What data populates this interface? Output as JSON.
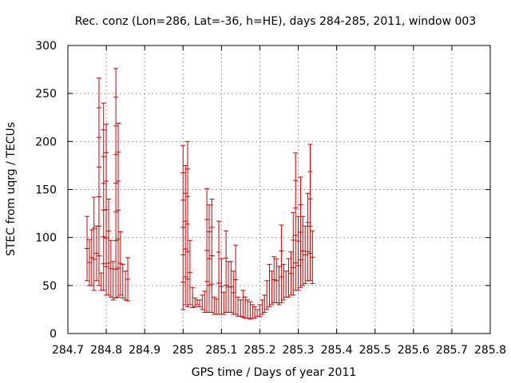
{
  "chart_data": {
    "type": "scatter",
    "title": "Rec. conz (Lon=286, Lat=-36, h=HE), days 284-285, 2011, window 003",
    "xlabel": "GPS time / Days of year 2011",
    "ylabel": "STEC from uqrg / TECUs",
    "xlim": [
      284.7,
      285.8
    ],
    "ylim": [
      0,
      300
    ],
    "x_ticks": [
      284.7,
      284.8,
      284.9,
      285,
      285.1,
      285.2,
      285.3,
      285.4,
      285.5,
      285.6,
      285.7,
      285.8
    ],
    "x_tick_labels": [
      "284.7",
      "284.8",
      "284.9",
      "285",
      "285.1",
      "285.2",
      "285.3",
      "285.4",
      "285.5",
      "285.6",
      "285.7",
      "285.8"
    ],
    "y_ticks": [
      0,
      50,
      100,
      150,
      200,
      250,
      300
    ],
    "y_tick_labels": [
      "0",
      "50",
      "100",
      "150",
      "200",
      "250",
      "300"
    ],
    "grid": true,
    "series_color": "#cc0000",
    "errorbars": [
      [
        284.75,
        55,
        122
      ],
      [
        284.756,
        50,
        98
      ],
      [
        284.762,
        50,
        108
      ],
      [
        284.768,
        45,
        142
      ],
      [
        284.775,
        55,
        112
      ],
      [
        284.781,
        50,
        266
      ],
      [
        284.787,
        45,
        63
      ],
      [
        284.793,
        45,
        240
      ],
      [
        284.8,
        40,
        218
      ],
      [
        284.806,
        40,
        140
      ],
      [
        284.812,
        38,
        97
      ],
      [
        284.818,
        35,
        75
      ],
      [
        284.825,
        37,
        276
      ],
      [
        284.831,
        38,
        219
      ],
      [
        284.837,
        40,
        106
      ],
      [
        284.843,
        37,
        72
      ],
      [
        284.85,
        35,
        65
      ],
      [
        284.856,
        34,
        79
      ],
      [
        285.0,
        25,
        196
      ],
      [
        285.006,
        30,
        175
      ],
      [
        285.012,
        28,
        200
      ],
      [
        285.018,
        30,
        97
      ],
      [
        285.025,
        27,
        48
      ],
      [
        285.031,
        28,
        37
      ],
      [
        285.037,
        30,
        35
      ],
      [
        285.043,
        28,
        35
      ],
      [
        285.05,
        25,
        40
      ],
      [
        285.056,
        22,
        44
      ],
      [
        285.062,
        22,
        151
      ],
      [
        285.068,
        22,
        134
      ],
      [
        285.075,
        22,
        140
      ],
      [
        285.081,
        20,
        38
      ],
      [
        285.087,
        20,
        36
      ],
      [
        285.093,
        20,
        117
      ],
      [
        285.1,
        20,
        78
      ],
      [
        285.106,
        20,
        43
      ],
      [
        285.112,
        22,
        107
      ],
      [
        285.118,
        22,
        75
      ],
      [
        285.125,
        22,
        75
      ],
      [
        285.131,
        20,
        65
      ],
      [
        285.137,
        20,
        92
      ],
      [
        285.143,
        18,
        38
      ],
      [
        285.15,
        18,
        35
      ],
      [
        285.156,
        17,
        45
      ],
      [
        285.162,
        16,
        38
      ],
      [
        285.168,
        16,
        35
      ],
      [
        285.175,
        15,
        33
      ],
      [
        285.181,
        16,
        30
      ],
      [
        285.187,
        16,
        28
      ],
      [
        285.193,
        18,
        25
      ],
      [
        285.2,
        18,
        30
      ],
      [
        285.206,
        20,
        35
      ],
      [
        285.212,
        22,
        40
      ],
      [
        285.218,
        25,
        55
      ],
      [
        285.225,
        28,
        72
      ],
      [
        285.231,
        30,
        65
      ],
      [
        285.237,
        32,
        80
      ],
      [
        285.243,
        32,
        78
      ],
      [
        285.25,
        30,
        70
      ],
      [
        285.256,
        32,
        113
      ],
      [
        285.262,
        35,
        72
      ],
      [
        285.268,
        38,
        65
      ],
      [
        285.275,
        38,
        78
      ],
      [
        285.281,
        40,
        85
      ],
      [
        285.287,
        40,
        126
      ],
      [
        285.293,
        45,
        188
      ],
      [
        285.3,
        45,
        122
      ],
      [
        285.306,
        48,
        163
      ],
      [
        285.312,
        50,
        122
      ],
      [
        285.318,
        52,
        112
      ],
      [
        285.325,
        55,
        146
      ],
      [
        285.331,
        55,
        197
      ],
      [
        285.337,
        52,
        107
      ]
    ]
  }
}
